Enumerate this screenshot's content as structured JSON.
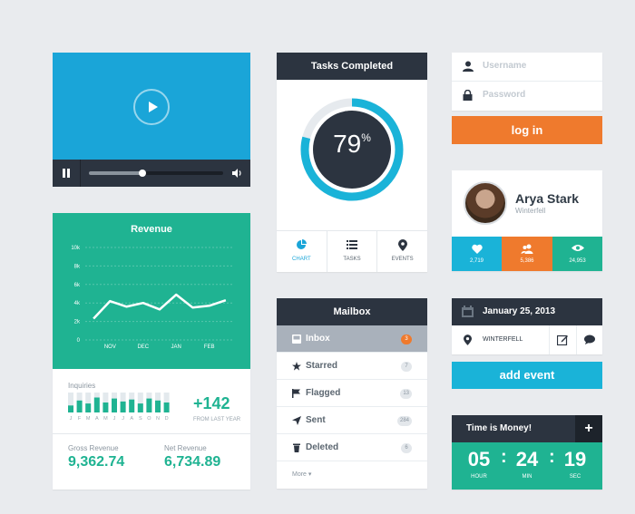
{
  "video": {
    "progress": 0.4
  },
  "revenue": {
    "title": "Revenue",
    "inquiries_label": "Inquiries",
    "inquiries_value": "+142",
    "inquiries_sub": "FROM LAST YEAR",
    "months": [
      "J",
      "F",
      "M",
      "A",
      "M",
      "J",
      "J",
      "A",
      "S",
      "O",
      "N",
      "D"
    ],
    "inquiry_levels": [
      0.35,
      0.6,
      0.45,
      0.75,
      0.5,
      0.7,
      0.55,
      0.65,
      0.45,
      0.7,
      0.6,
      0.5
    ],
    "gross_label": "Gross Revenue",
    "gross_value": "9,362.74",
    "net_label": "Net Revenue",
    "net_value": "6,734.89"
  },
  "chart_data": {
    "type": "line",
    "categories": [
      "",
      "NOV",
      "",
      "DEC",
      "",
      "JAN",
      "",
      "FEB",
      ""
    ],
    "values": [
      2.3,
      4.2,
      3.6,
      4.0,
      3.3,
      4.9,
      3.5,
      3.7,
      4.3
    ],
    "x_labels": [
      "NOV",
      "DEC",
      "JAN",
      "FEB"
    ],
    "y_ticks": [
      "10k",
      "8k",
      "6k",
      "4k",
      "2k",
      "0"
    ],
    "ylim": [
      0,
      10
    ],
    "title": "Revenue",
    "grid": true
  },
  "tasks": {
    "title": "Tasks Completed",
    "percent": "79",
    "percent_sign": "%",
    "fraction": 0.79,
    "tabs": [
      {
        "label": "CHART",
        "icon": "pie-chart-icon"
      },
      {
        "label": "TASKS",
        "icon": "list-icon"
      },
      {
        "label": "EVENTS",
        "icon": "location-pin-icon"
      }
    ]
  },
  "mailbox": {
    "title": "Mailbox",
    "items": [
      {
        "label": "Inbox",
        "count": "3",
        "icon": "inbox-icon"
      },
      {
        "label": "Starred",
        "count": "7",
        "icon": "star-icon"
      },
      {
        "label": "Flagged",
        "count": "13",
        "icon": "flag-icon"
      },
      {
        "label": "Sent",
        "count": "284",
        "icon": "send-icon"
      },
      {
        "label": "Deleted",
        "count": "6",
        "icon": "trash-icon"
      }
    ],
    "more": "More ▾"
  },
  "login": {
    "username_placeholder": "Username",
    "password_placeholder": "Password",
    "button": "log in"
  },
  "profile": {
    "name": "Arya Stark",
    "location": "Winterfell",
    "stats": [
      {
        "value": "2,719",
        "icon": "heart-icon",
        "color": "#1ab3d8"
      },
      {
        "value": "5,386",
        "icon": "users-icon",
        "color": "#ef7a2d"
      },
      {
        "value": "24,953",
        "icon": "eye-icon",
        "color": "#1fb392"
      }
    ]
  },
  "event": {
    "date": "January 25, 2013",
    "location": "WINTERFELL",
    "add_button": "add event"
  },
  "timer": {
    "title": "Time is Money!",
    "plus": "+",
    "hours": "05",
    "minutes": "24",
    "seconds": "19",
    "hour_label": "HOUR",
    "min_label": "MIN",
    "sec_label": "SEC"
  },
  "colors": {
    "teal": "#1fb392",
    "blue": "#1aa5d8",
    "orange": "#ef7a2d",
    "dark": "#2c3440"
  }
}
